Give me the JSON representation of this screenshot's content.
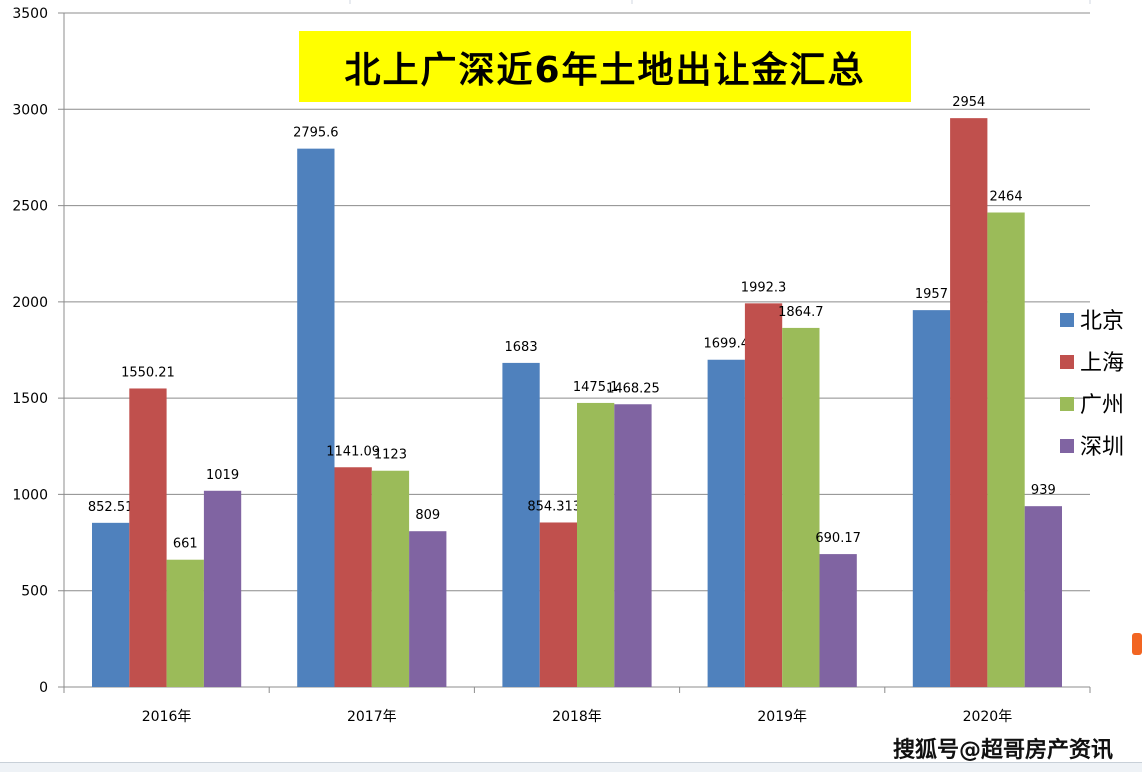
{
  "chart_data": {
    "type": "bar",
    "title": "北上广深近6年土地出让金汇总",
    "categories": [
      "2016年",
      "2017年",
      "2018年",
      "2019年",
      "2020年"
    ],
    "series": [
      {
        "name": "北京",
        "color": "#4f81bd",
        "values": [
          852.51,
          2795.6,
          1683,
          1699.4,
          1957
        ],
        "labels": [
          "852.51",
          "2795.6",
          "1683",
          "1699.4",
          "1957"
        ]
      },
      {
        "name": "上海",
        "color": "#c0504d",
        "values": [
          1550.21,
          1141.09,
          854.3135,
          1992.3,
          2954
        ],
        "labels": [
          "1550.21",
          "1141.09",
          "854.3135",
          "1992.3",
          "2954"
        ]
      },
      {
        "name": "广州",
        "color": "#9bbb59",
        "values": [
          661,
          1123,
          1475.1,
          1864.7,
          2464
        ],
        "labels": [
          "661",
          "1123",
          "1475.1",
          "1864.7",
          "2464"
        ]
      },
      {
        "name": "深圳",
        "color": "#8064a2",
        "values": [
          1019,
          809,
          1468.25,
          690.17,
          939
        ],
        "labels": [
          "1019",
          "809",
          "1468.25",
          "690.17",
          "939"
        ]
      }
    ],
    "yticks": [
      "0",
      "500",
      "1000",
      "1500",
      "2000",
      "2500",
      "3000",
      "3500"
    ],
    "ylim": [
      0,
      3500
    ],
    "grid": true,
    "legend_position": "right"
  },
  "watermark": "搜狐号@超哥房产资讯"
}
